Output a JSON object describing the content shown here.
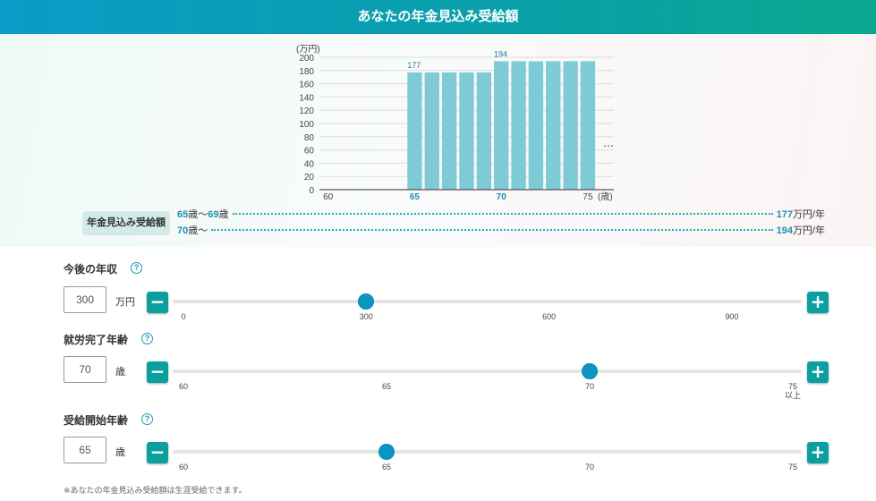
{
  "header": {
    "title": "あなたの年金見込み受給額"
  },
  "chart_data": {
    "type": "bar",
    "unit_label": "(万円)",
    "x_unit_label": "(歳)",
    "x_ticks": [
      "60",
      "65",
      "70",
      "75"
    ],
    "x_ticks_highlight": [
      false,
      true,
      true,
      false
    ],
    "y_ticks": [
      "0",
      "20",
      "40",
      "60",
      "80",
      "100",
      "120",
      "140",
      "160",
      "180",
      "200"
    ],
    "ylim": [
      0,
      200
    ],
    "xlim": [
      60,
      77
    ],
    "x": [
      65,
      66,
      67,
      68,
      69,
      70,
      71,
      72,
      73,
      74,
      75
    ],
    "values": [
      177,
      177,
      177,
      177,
      177,
      194,
      194,
      194,
      194,
      194,
      194
    ],
    "data_labels": [
      {
        "x": 65,
        "text": "177"
      },
      {
        "x": 70,
        "text": "194"
      }
    ],
    "continuation": "…",
    "bar_color": "#7fcad7",
    "grid": true
  },
  "summary": {
    "label": "年金見込み受給額",
    "rows": [
      {
        "age_from": "65",
        "sep1": "歳〜",
        "age_to": "69",
        "sep2": "歳",
        "amount": "177",
        "amount_unit": "万円/年"
      },
      {
        "age_from": "70",
        "sep1": "歳〜",
        "age_to": "",
        "sep2": "",
        "amount": "194",
        "amount_unit": "万円/年"
      }
    ]
  },
  "sliders": {
    "income": {
      "title": "今後の年収",
      "help": "?",
      "value": "300",
      "unit": "万円",
      "minus": "−",
      "plus": "+",
      "min": 0,
      "max": 1000,
      "current": 300,
      "ticks": [
        {
          "label": "0",
          "value": 0
        },
        {
          "label": "300",
          "value": 300
        },
        {
          "label": "600",
          "value": 600
        },
        {
          "label": "900",
          "value": 900
        }
      ]
    },
    "retire_age": {
      "title": "就労完了年齢",
      "help": "?",
      "value": "70",
      "unit": "歳",
      "minus": "−",
      "plus": "+",
      "min": 60,
      "max": 75,
      "current": 70,
      "ticks": [
        {
          "label": "60",
          "value": 60
        },
        {
          "label": "65",
          "value": 65
        },
        {
          "label": "70",
          "value": 70
        },
        {
          "label": "75",
          "value": 75,
          "sub": "以上"
        }
      ]
    },
    "start_age": {
      "title": "受給開始年齢",
      "help": "?",
      "value": "65",
      "unit": "歳",
      "minus": "−",
      "plus": "+",
      "min": 60,
      "max": 75,
      "current": 65,
      "ticks": [
        {
          "label": "60",
          "value": 60
        },
        {
          "label": "65",
          "value": 65
        },
        {
          "label": "70",
          "value": 70
        },
        {
          "label": "75",
          "value": 75
        }
      ]
    }
  },
  "footnote": "※あなたの年金見込み受給額は生涯受給できます。",
  "colors": {
    "accent": "#0aa0a0",
    "thumb": "#0a96c4",
    "highlight_text": "#1a8fb0"
  }
}
